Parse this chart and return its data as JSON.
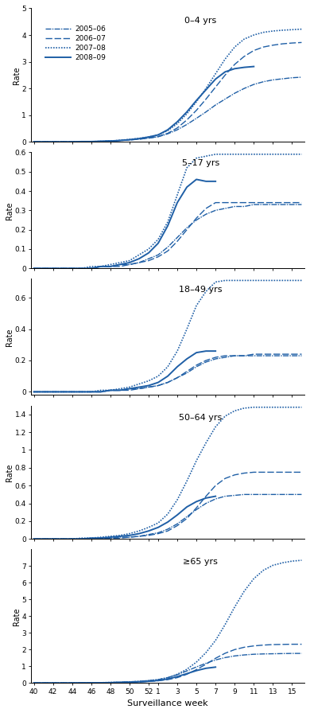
{
  "x_weeks": [
    40,
    41,
    42,
    43,
    44,
    45,
    46,
    47,
    48,
    49,
    50,
    51,
    52,
    1,
    2,
    3,
    4,
    5,
    6,
    7,
    8,
    9,
    10,
    11,
    12,
    13,
    14,
    15,
    16
  ],
  "subplots": [
    {
      "title": "0–4 yrs",
      "ylim": [
        0,
        5
      ],
      "yticks": [
        0,
        1,
        2,
        3,
        4,
        5
      ],
      "series": {
        "2005-06": [
          0.0,
          0.0,
          0.0,
          0.0,
          0.0,
          0.01,
          0.01,
          0.02,
          0.03,
          0.05,
          0.07,
          0.1,
          0.14,
          0.19,
          0.3,
          0.45,
          0.65,
          0.88,
          1.12,
          1.38,
          1.6,
          1.82,
          2.0,
          2.15,
          2.25,
          2.32,
          2.36,
          2.4,
          2.42
        ],
        "2006-07": [
          0.0,
          0.0,
          0.0,
          0.0,
          0.0,
          0.01,
          0.01,
          0.02,
          0.03,
          0.05,
          0.07,
          0.1,
          0.14,
          0.2,
          0.32,
          0.52,
          0.82,
          1.18,
          1.6,
          2.05,
          2.5,
          2.9,
          3.2,
          3.42,
          3.55,
          3.62,
          3.67,
          3.7,
          3.72
        ],
        "2007-08": [
          0.0,
          0.0,
          0.0,
          0.0,
          0.0,
          0.01,
          0.01,
          0.02,
          0.03,
          0.06,
          0.09,
          0.13,
          0.18,
          0.26,
          0.42,
          0.68,
          1.05,
          1.5,
          2.0,
          2.55,
          3.1,
          3.55,
          3.85,
          4.0,
          4.1,
          4.15,
          4.18,
          4.2,
          4.22
        ],
        "2008-09": [
          0.0,
          0.0,
          0.0,
          0.0,
          0.0,
          0.01,
          0.01,
          0.02,
          0.03,
          0.05,
          0.08,
          0.12,
          0.18,
          0.26,
          0.45,
          0.75,
          1.12,
          1.55,
          1.95,
          2.35,
          2.62,
          2.74,
          2.79,
          2.82,
          null,
          null,
          null,
          null,
          null
        ]
      }
    },
    {
      "title": "5–17 yrs",
      "ylim": [
        0,
        0.6
      ],
      "yticks": [
        0,
        0.1,
        0.2,
        0.3,
        0.4,
        0.5,
        0.6
      ],
      "series": {
        "2005-06": [
          0.0,
          0.0,
          0.0,
          0.0,
          0.0,
          0.0,
          0.0,
          0.01,
          0.01,
          0.02,
          0.02,
          0.03,
          0.05,
          0.07,
          0.11,
          0.16,
          0.21,
          0.25,
          0.28,
          0.3,
          0.31,
          0.32,
          0.32,
          0.33,
          0.33,
          0.33,
          0.33,
          0.33,
          0.33
        ],
        "2006-07": [
          0.0,
          0.0,
          0.0,
          0.0,
          0.0,
          0.0,
          0.0,
          0.01,
          0.01,
          0.01,
          0.02,
          0.03,
          0.04,
          0.06,
          0.09,
          0.14,
          0.2,
          0.26,
          0.31,
          0.34,
          0.34,
          0.34,
          0.34,
          0.34,
          0.34,
          0.34,
          0.34,
          0.34,
          0.34
        ],
        "2007-08": [
          0.0,
          0.0,
          0.0,
          0.0,
          0.0,
          0.0,
          0.01,
          0.01,
          0.02,
          0.03,
          0.04,
          0.07,
          0.1,
          0.15,
          0.24,
          0.38,
          0.52,
          0.57,
          0.58,
          0.59,
          0.59,
          0.59,
          0.59,
          0.59,
          0.59,
          0.59,
          0.59,
          0.59,
          0.59
        ],
        "2008-09": [
          0.0,
          0.0,
          0.0,
          0.0,
          0.0,
          0.0,
          0.0,
          0.01,
          0.01,
          0.02,
          0.03,
          0.05,
          0.08,
          0.13,
          0.22,
          0.34,
          0.42,
          0.46,
          0.45,
          0.45,
          null,
          null,
          null,
          null,
          null,
          null,
          null,
          null,
          null
        ]
      }
    },
    {
      "title": "18–49 yrs",
      "ylim": [
        -0.02,
        0.72
      ],
      "yticks": [
        0,
        0.2,
        0.4,
        0.6
      ],
      "series": {
        "2005-06": [
          0.0,
          0.0,
          0.0,
          0.0,
          0.0,
          0.0,
          0.0,
          0.0,
          0.01,
          0.01,
          0.02,
          0.02,
          0.03,
          0.04,
          0.06,
          0.09,
          0.12,
          0.16,
          0.19,
          0.21,
          0.22,
          0.23,
          0.23,
          0.23,
          0.23,
          0.23,
          0.23,
          0.23,
          0.23
        ],
        "2006-07": [
          0.0,
          0.0,
          0.0,
          0.0,
          0.0,
          0.0,
          0.0,
          0.0,
          0.01,
          0.01,
          0.01,
          0.02,
          0.03,
          0.04,
          0.06,
          0.09,
          0.13,
          0.17,
          0.2,
          0.22,
          0.23,
          0.23,
          0.23,
          0.24,
          0.24,
          0.24,
          0.24,
          0.24,
          0.24
        ],
        "2007-08": [
          0.0,
          0.0,
          0.0,
          0.0,
          0.0,
          0.0,
          0.0,
          0.01,
          0.01,
          0.02,
          0.03,
          0.05,
          0.07,
          0.1,
          0.16,
          0.26,
          0.4,
          0.55,
          0.64,
          0.7,
          0.71,
          0.71,
          0.71,
          0.71,
          0.71,
          0.71,
          0.71,
          0.71,
          0.71
        ],
        "2008-09": [
          0.0,
          0.0,
          0.0,
          0.0,
          0.0,
          0.0,
          0.0,
          0.0,
          0.01,
          0.01,
          0.02,
          0.03,
          0.04,
          0.06,
          0.1,
          0.16,
          0.21,
          0.25,
          0.26,
          0.26,
          null,
          null,
          null,
          null,
          null,
          null,
          null,
          null,
          null
        ]
      }
    },
    {
      "title": "50–64 yrs",
      "ylim": [
        0,
        1.5
      ],
      "yticks": [
        0,
        0.2,
        0.4,
        0.6,
        0.8,
        1.0,
        1.2,
        1.4
      ],
      "series": {
        "2005-06": [
          0.0,
          0.0,
          0.0,
          0.0,
          0.0,
          0.0,
          0.0,
          0.01,
          0.01,
          0.02,
          0.02,
          0.03,
          0.05,
          0.07,
          0.11,
          0.17,
          0.25,
          0.33,
          0.4,
          0.45,
          0.48,
          0.49,
          0.5,
          0.5,
          0.5,
          0.5,
          0.5,
          0.5,
          0.5
        ],
        "2006-07": [
          0.0,
          0.0,
          0.0,
          0.0,
          0.0,
          0.0,
          0.0,
          0.01,
          0.01,
          0.01,
          0.02,
          0.03,
          0.04,
          0.06,
          0.09,
          0.15,
          0.23,
          0.35,
          0.48,
          0.6,
          0.68,
          0.72,
          0.74,
          0.75,
          0.75,
          0.75,
          0.75,
          0.75,
          0.75
        ],
        "2007-08": [
          0.0,
          0.0,
          0.0,
          0.0,
          0.0,
          0.01,
          0.01,
          0.02,
          0.03,
          0.04,
          0.06,
          0.09,
          0.13,
          0.18,
          0.28,
          0.44,
          0.65,
          0.88,
          1.08,
          1.26,
          1.38,
          1.44,
          1.47,
          1.48,
          1.48,
          1.48,
          1.48,
          1.48,
          1.48
        ],
        "2008-09": [
          0.0,
          0.0,
          0.0,
          0.0,
          0.0,
          0.0,
          0.01,
          0.01,
          0.02,
          0.03,
          0.04,
          0.06,
          0.09,
          0.13,
          0.19,
          0.27,
          0.36,
          0.42,
          0.46,
          0.48,
          null,
          null,
          null,
          null,
          null,
          null,
          null,
          null,
          null
        ]
      }
    },
    {
      "title": "≥65 yrs",
      "ylim": [
        0,
        8
      ],
      "yticks": [
        0,
        1,
        2,
        3,
        4,
        5,
        6,
        7
      ],
      "series": {
        "2005-06": [
          0.0,
          0.0,
          0.0,
          0.0,
          0.0,
          0.01,
          0.01,
          0.02,
          0.03,
          0.05,
          0.07,
          0.1,
          0.14,
          0.2,
          0.32,
          0.5,
          0.72,
          0.96,
          1.18,
          1.38,
          1.52,
          1.62,
          1.68,
          1.72,
          1.74,
          1.75,
          1.76,
          1.77,
          1.77
        ],
        "2006-07": [
          0.0,
          0.0,
          0.0,
          0.0,
          0.0,
          0.01,
          0.01,
          0.01,
          0.02,
          0.03,
          0.04,
          0.06,
          0.09,
          0.13,
          0.2,
          0.32,
          0.52,
          0.8,
          1.12,
          1.48,
          1.78,
          2.0,
          2.14,
          2.22,
          2.27,
          2.3,
          2.31,
          2.32,
          2.32
        ],
        "2007-08": [
          0.0,
          0.0,
          0.0,
          0.0,
          0.0,
          0.01,
          0.01,
          0.02,
          0.03,
          0.04,
          0.06,
          0.09,
          0.14,
          0.2,
          0.32,
          0.52,
          0.82,
          1.25,
          1.82,
          2.55,
          3.5,
          4.55,
          5.5,
          6.25,
          6.75,
          7.05,
          7.2,
          7.3,
          7.35
        ],
        "2008-09": [
          0.0,
          0.0,
          0.0,
          0.0,
          0.0,
          0.01,
          0.01,
          0.01,
          0.02,
          0.03,
          0.05,
          0.07,
          0.1,
          0.15,
          0.24,
          0.38,
          0.56,
          0.74,
          0.88,
          0.95,
          null,
          null,
          null,
          null,
          null,
          null,
          null,
          null,
          null
        ]
      }
    }
  ],
  "x_tick_labels": [
    "40",
    "42",
    "44",
    "46",
    "48",
    "50",
    "52",
    "1",
    "3",
    "5",
    "7",
    "9",
    "11",
    "13",
    "15"
  ],
  "x_tick_positions": [
    40,
    42,
    44,
    46,
    48,
    50,
    52,
    1,
    3,
    5,
    7,
    9,
    11,
    13,
    15
  ],
  "xlabel": "Surveillance week",
  "ylabel": "Rate",
  "legend_labels": [
    "2005–06",
    "2006–07",
    "2007–08",
    "2008–09"
  ],
  "line_color": "#1f5fa6",
  "background_color": "#ffffff"
}
